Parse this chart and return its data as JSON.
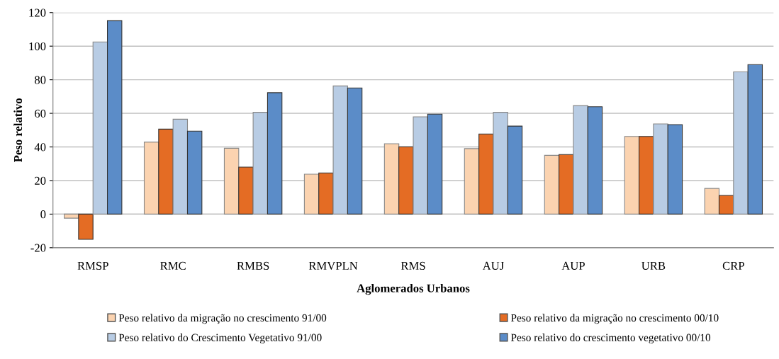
{
  "chart_data": {
    "type": "bar",
    "xlabel": "Aglomerados Urbanos",
    "ylabel": "Peso relativo",
    "categories": [
      "RMSP",
      "RMC",
      "RMBS",
      "RMVPLN",
      "RMS",
      "AUJ",
      "AUP",
      "URB",
      "CRP"
    ],
    "series": [
      {
        "name": "Peso relativo da migração no crescimento 91/00",
        "color": "#fbd3b0",
        "values": [
          -2.4,
          42.9,
          39.2,
          23.8,
          41.9,
          39,
          35,
          46.2,
          15.3
        ]
      },
      {
        "name": "Peso relativo da migração no crescimento 00/10",
        "color": "#e46c24",
        "values": [
          -15,
          50.6,
          28,
          24.5,
          40.1,
          47.7,
          35.5,
          46.2,
          11.1
        ]
      },
      {
        "name": "Peso relativo do Crescimento Vegetativo 91/00",
        "color": "#b8cce4",
        "values": [
          102.5,
          56.5,
          60.6,
          76.3,
          57.9,
          60.6,
          64.6,
          53.7,
          84.7
        ]
      },
      {
        "name": "Peso relativo do crescimento vegetativo 00/10",
        "color": "#5b8cc8",
        "values": [
          115.2,
          49.4,
          72.3,
          75.1,
          59.5,
          52.4,
          63.9,
          53.3,
          89
        ]
      }
    ],
    "ylim": [
      -20,
      120
    ],
    "yticks": [
      -20,
      0,
      20,
      40,
      60,
      80,
      100,
      120
    ],
    "grid": "y",
    "legend": "bottom"
  }
}
